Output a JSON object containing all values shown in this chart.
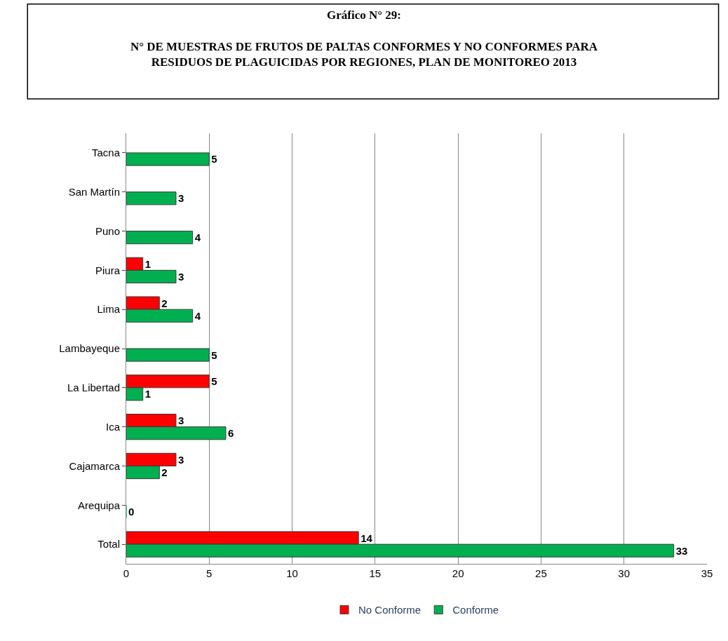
{
  "chart_data": {
    "type": "bar",
    "orientation": "horizontal",
    "title": "Gráfico N° 29:",
    "subtitle": "N° DE MUESTRAS DE FRUTOS DE PALTAS CONFORMES Y NO CONFORMES PARA RESIDUOS DE PLAGUICIDAS POR REGIONES, PLAN DE MONITOREO 2013",
    "categories": [
      "Tacna",
      "San Martín",
      "Puno",
      "Piura",
      "Lima",
      "Lambayeque",
      "La Libertad",
      "Ica",
      "Cajamarca",
      "Arequipa",
      "Total"
    ],
    "series": [
      {
        "name": "No Conforme",
        "color": "#ff0000",
        "values": [
          null,
          null,
          null,
          1,
          2,
          null,
          5,
          3,
          3,
          null,
          14
        ]
      },
      {
        "name": "Conforme",
        "color": "#00b050",
        "values": [
          5,
          3,
          4,
          3,
          4,
          5,
          1,
          6,
          2,
          0,
          33
        ]
      }
    ],
    "xlim": [
      0,
      35
    ],
    "xticks": [
      0,
      5,
      10,
      15,
      20,
      25,
      30,
      35
    ],
    "grid": "x",
    "legend": "bottom",
    "data_labels": true
  }
}
